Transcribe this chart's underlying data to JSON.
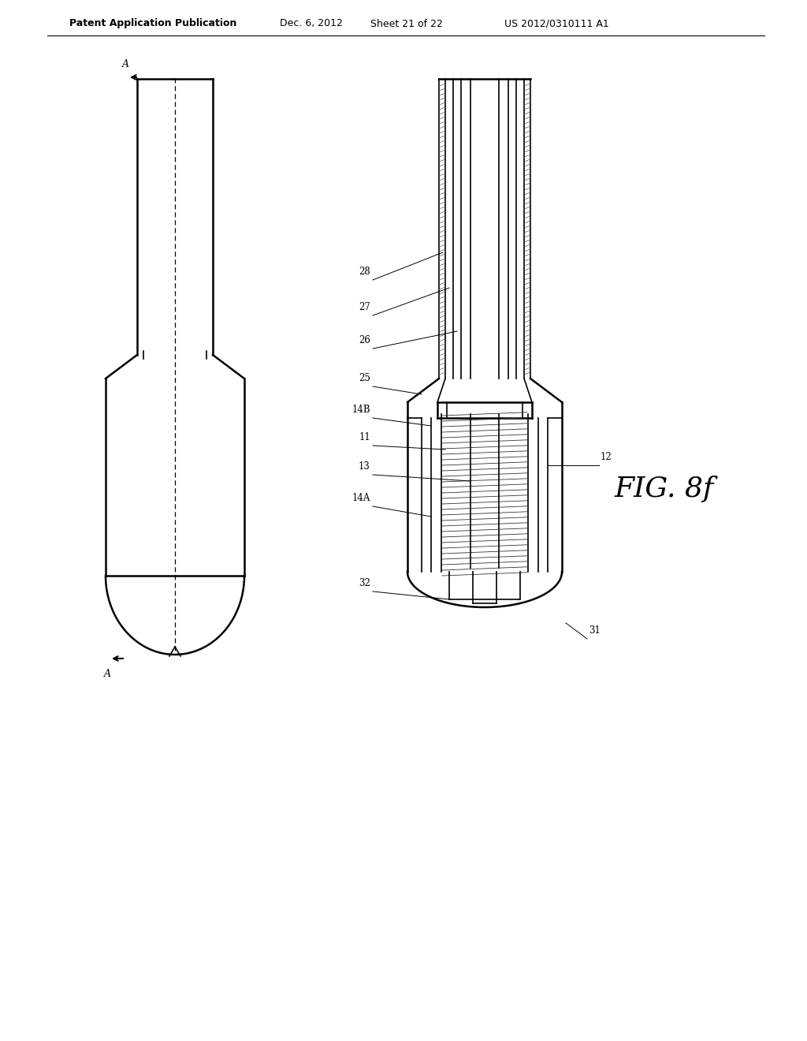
{
  "bg_color": "#ffffff",
  "line_color": "#000000",
  "header_text": "Patent Application Publication",
  "header_date": "Dec. 6, 2012",
  "header_sheet": "Sheet 21 of 22",
  "header_patent": "US 2012/0310111 A1",
  "fig_label": "FIG. 8f"
}
